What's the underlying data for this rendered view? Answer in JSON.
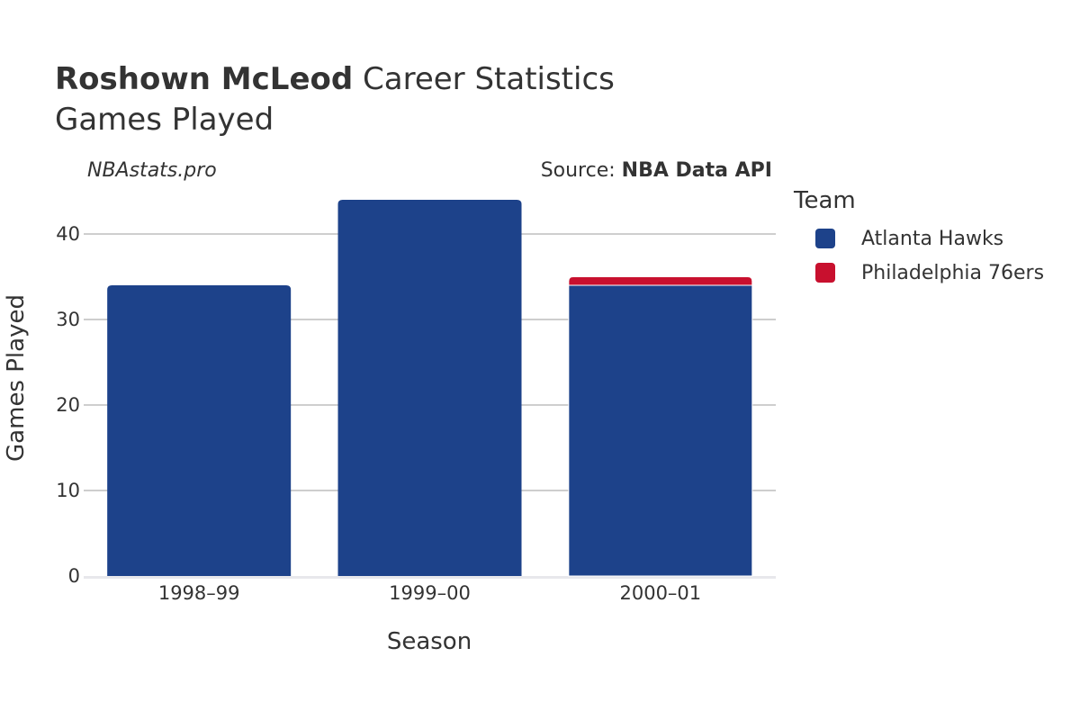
{
  "header": {
    "player_name": "Roshown McLeod",
    "title_rest": "Career Statistics",
    "subtitle": "Games Played"
  },
  "watermark": "NBAstats.pro",
  "source": {
    "label": "Source: ",
    "name": "NBA Data API"
  },
  "legend": {
    "title": "Team",
    "items": [
      {
        "label": "Atlanta Hawks",
        "color": "#1d428a"
      },
      {
        "label": "Philadelphia 76ers",
        "color": "#c8102e"
      }
    ]
  },
  "chart_data": {
    "type": "bar",
    "stacked": true,
    "title": "Roshown McLeod Career Statistics",
    "subtitle": "Games Played",
    "xlabel": "Season",
    "ylabel": "Games Played",
    "categories": [
      "1998–99",
      "1999–00",
      "2000–01"
    ],
    "series": [
      {
        "name": "Atlanta Hawks",
        "color": "#1d428a",
        "values": [
          34,
          44,
          34
        ]
      },
      {
        "name": "Philadelphia 76ers",
        "color": "#c8102e",
        "values": [
          0,
          0,
          1
        ]
      }
    ],
    "yticks": [
      0,
      10,
      20,
      30,
      40
    ],
    "ylim": [
      0,
      46
    ],
    "grid": true,
    "legend_position": "right"
  }
}
